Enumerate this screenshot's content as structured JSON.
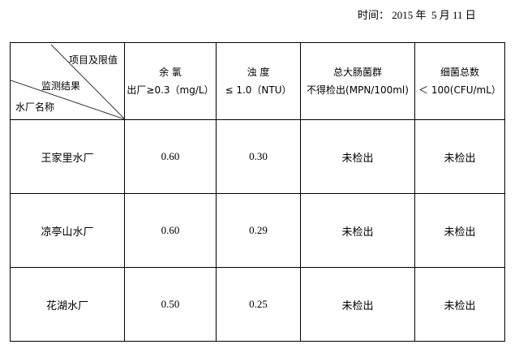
{
  "date": "时间： 2015 年  5 月 11 日",
  "header": {
    "corner": {
      "top": "项目及限值",
      "middle": "监测结果",
      "bottom": "水厂名称"
    },
    "columns": [
      {
        "name": "余  氯",
        "limit": "出厂≥0.3（mg/L）"
      },
      {
        "name": "浊  度",
        "limit": "≤ 1.0（NTU）"
      },
      {
        "name": "总大肠菌群",
        "limit": "不得检出(MPN/100ml)"
      },
      {
        "name": "细菌总数",
        "limit": "＜ 100(CFU/mL）"
      }
    ]
  },
  "rows": [
    {
      "plant": "王家里水厂",
      "chlorine": "0.60",
      "turbidity": "0.30",
      "coliform": "未检出",
      "bacteria": "未检出"
    },
    {
      "plant": "凉亭山水厂",
      "chlorine": "0.60",
      "turbidity": "0.29",
      "coliform": "未检出",
      "bacteria": "未检出"
    },
    {
      "plant": "花湖水厂",
      "chlorine": "0.50",
      "turbidity": "0.25",
      "coliform": "未检出",
      "bacteria": "未检出"
    }
  ]
}
